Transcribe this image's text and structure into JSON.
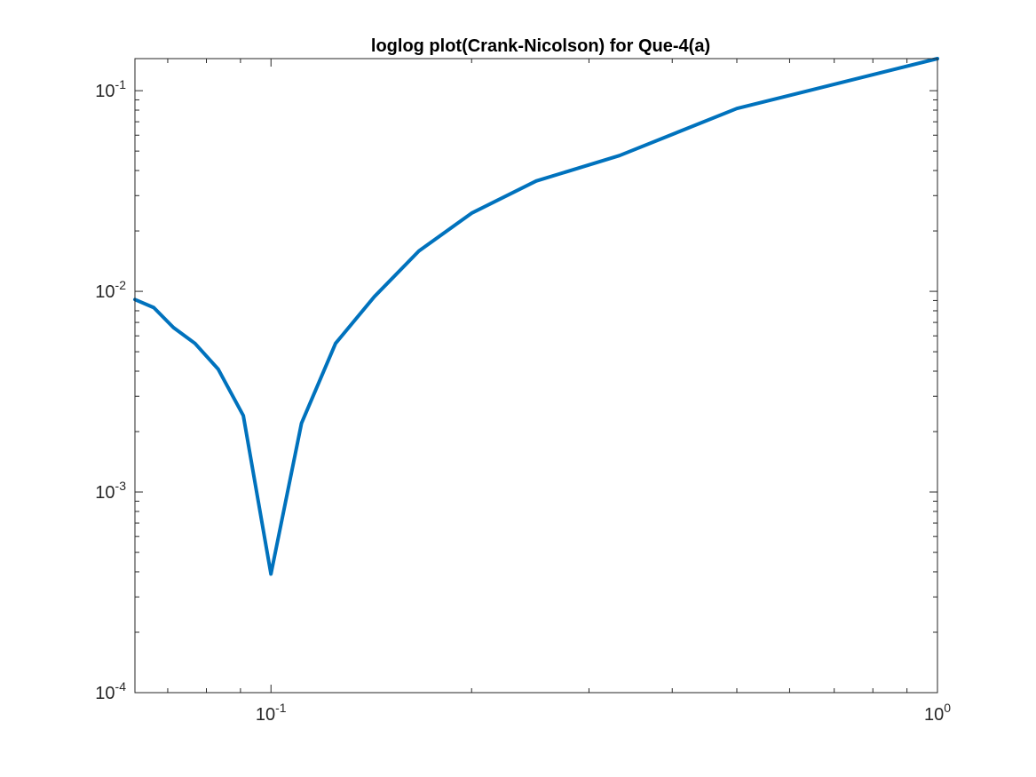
{
  "chart_data": {
    "type": "line",
    "title": "loglog plot(Crank-Nicolson) for Que-4(a)",
    "xlabel": "",
    "ylabel": "",
    "xscale": "log",
    "yscale": "log",
    "xlim": [
      0.0625,
      1
    ],
    "ylim": [
      0.0001,
      0.1445
    ],
    "grid": false,
    "box": true,
    "x_ticks": [
      {
        "value": 0.1,
        "base": "10",
        "exp": "-1"
      },
      {
        "value": 1,
        "base": "10",
        "exp": "0"
      }
    ],
    "y_ticks": [
      {
        "value": 0.0001,
        "base": "10",
        "exp": "-4"
      },
      {
        "value": 0.001,
        "base": "10",
        "exp": "-3"
      },
      {
        "value": 0.01,
        "base": "10",
        "exp": "-2"
      },
      {
        "value": 0.1,
        "base": "10",
        "exp": "-1"
      }
    ],
    "series": [
      {
        "color": "#0072BD",
        "x": [
          0.0625,
          0.0667,
          0.0714,
          0.0769,
          0.0833,
          0.0909,
          0.1,
          0.1111,
          0.125,
          0.1429,
          0.1667,
          0.2,
          0.25,
          0.3333,
          0.5,
          1
        ],
        "y": [
          0.0091,
          0.0083,
          0.0066,
          0.0055,
          0.0041,
          0.0024,
          0.00039,
          0.0022,
          0.0055,
          0.0094,
          0.0159,
          0.0245,
          0.0355,
          0.0475,
          0.0815,
          0.1445
        ]
      }
    ]
  }
}
